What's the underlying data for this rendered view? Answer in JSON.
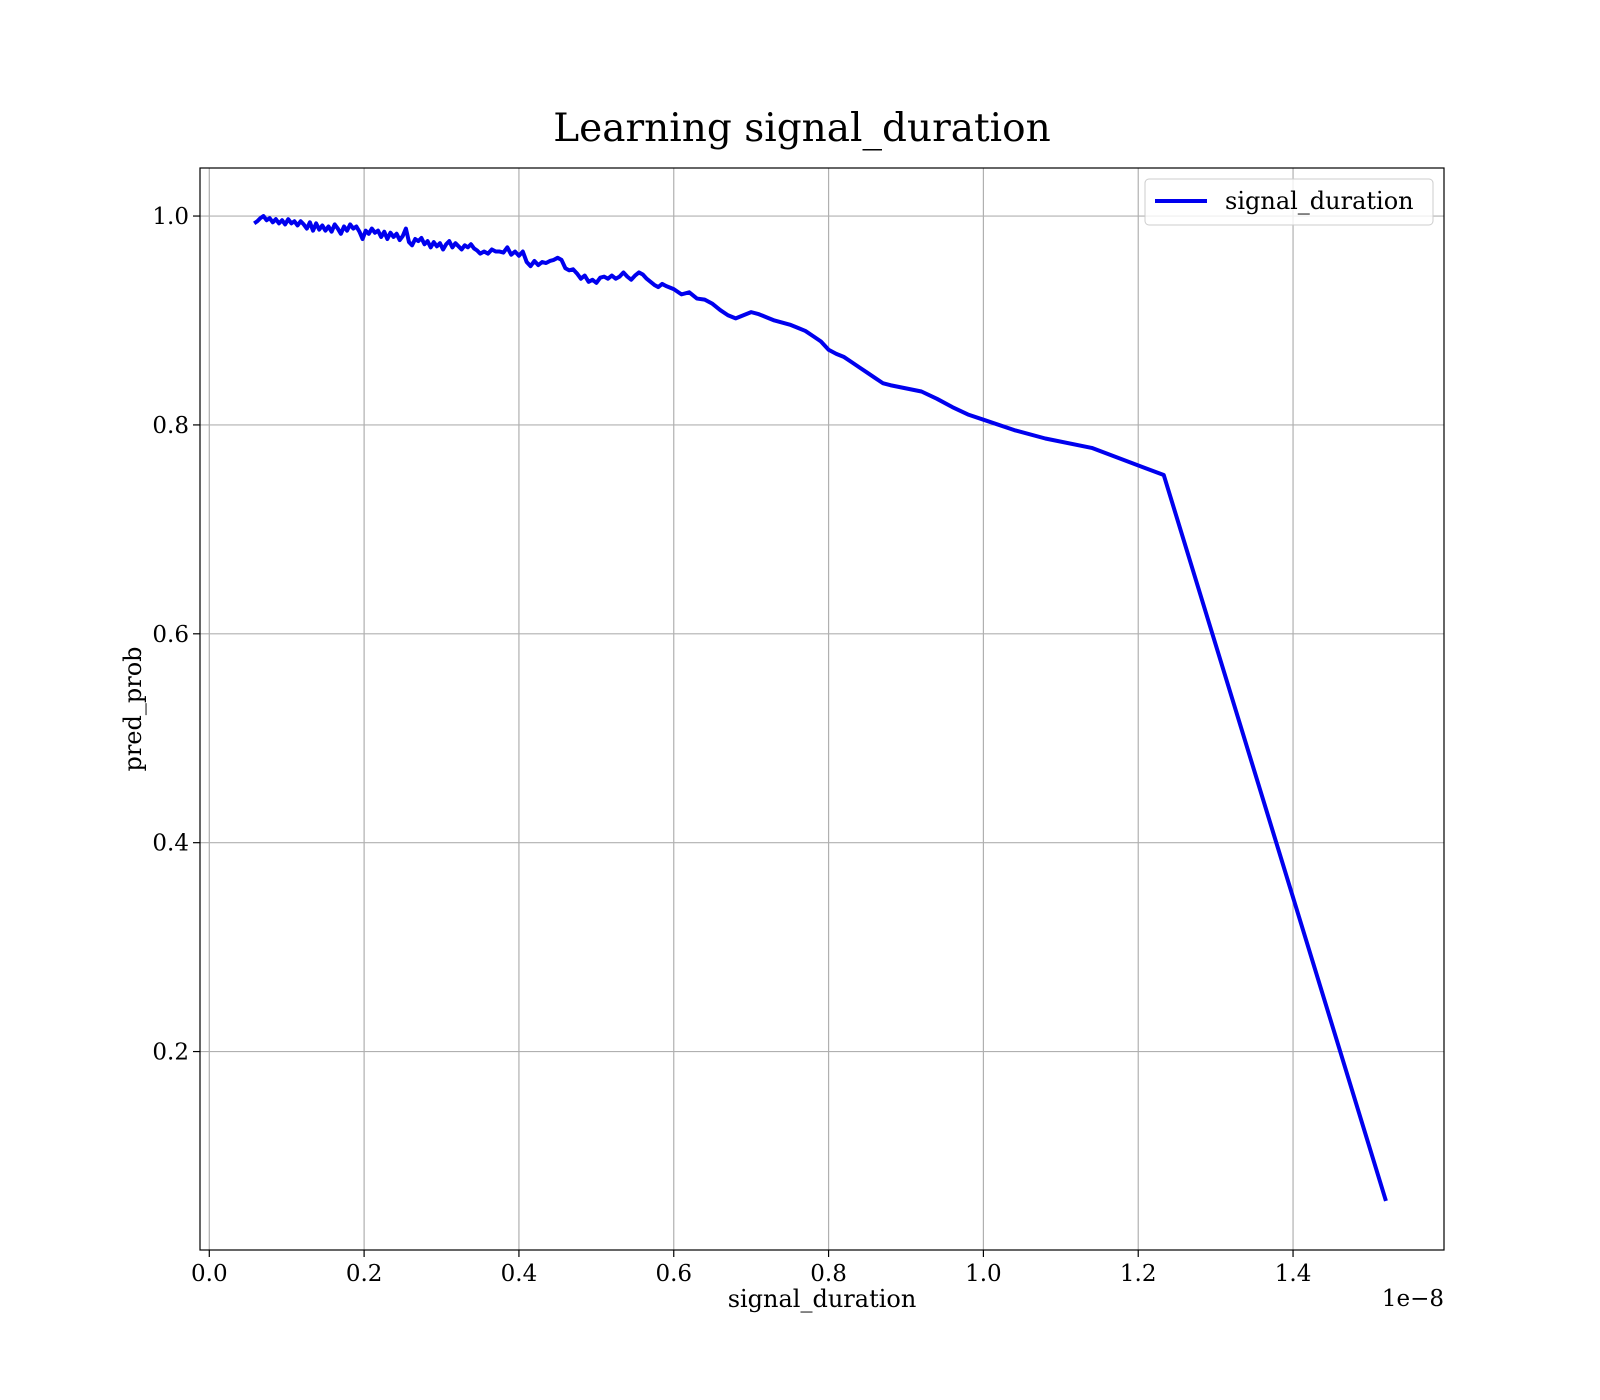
{
  "chart_data": {
    "type": "line",
    "title": "Learning signal_duration",
    "xlabel": "signal_duration",
    "ylabel": "pred_prob",
    "x_offset_text": "1e−8",
    "xlim": [
      -0.012,
      1.595
    ],
    "ylim": [
      0.01,
      1.046
    ],
    "x_ticks": [
      0.0,
      0.2,
      0.4,
      0.6,
      0.8,
      1.0,
      1.2,
      1.4
    ],
    "x_tick_labels": [
      "0.0",
      "0.2",
      "0.4",
      "0.6",
      "0.8",
      "1.0",
      "1.2",
      "1.4"
    ],
    "y_ticks": [
      0.2,
      0.4,
      0.6,
      0.8,
      1.0
    ],
    "y_tick_labels": [
      "0.2",
      "0.4",
      "0.6",
      "0.8",
      "1.0"
    ],
    "grid": true,
    "legend_position": "upper right",
    "colors": {
      "series": "#0000ee"
    },
    "series": [
      {
        "name": "signal_duration",
        "x": [
          0.058,
          0.062,
          0.066,
          0.07,
          0.074,
          0.078,
          0.082,
          0.086,
          0.09,
          0.094,
          0.098,
          0.102,
          0.106,
          0.11,
          0.114,
          0.118,
          0.122,
          0.126,
          0.13,
          0.134,
          0.138,
          0.142,
          0.146,
          0.15,
          0.154,
          0.158,
          0.162,
          0.166,
          0.17,
          0.174,
          0.178,
          0.182,
          0.186,
          0.19,
          0.194,
          0.198,
          0.202,
          0.206,
          0.21,
          0.214,
          0.218,
          0.222,
          0.226,
          0.23,
          0.234,
          0.238,
          0.242,
          0.246,
          0.25,
          0.254,
          0.258,
          0.262,
          0.266,
          0.27,
          0.274,
          0.278,
          0.282,
          0.286,
          0.29,
          0.294,
          0.298,
          0.302,
          0.306,
          0.31,
          0.314,
          0.318,
          0.322,
          0.326,
          0.33,
          0.334,
          0.338,
          0.342,
          0.346,
          0.35,
          0.355,
          0.36,
          0.365,
          0.37,
          0.375,
          0.38,
          0.385,
          0.39,
          0.395,
          0.4,
          0.405,
          0.41,
          0.415,
          0.42,
          0.425,
          0.43,
          0.435,
          0.44,
          0.445,
          0.45,
          0.455,
          0.46,
          0.465,
          0.47,
          0.475,
          0.48,
          0.485,
          0.49,
          0.495,
          0.5,
          0.505,
          0.51,
          0.515,
          0.52,
          0.525,
          0.53,
          0.535,
          0.54,
          0.545,
          0.55,
          0.555,
          0.56,
          0.565,
          0.57,
          0.575,
          0.58,
          0.585,
          0.59,
          0.6,
          0.61,
          0.62,
          0.63,
          0.64,
          0.65,
          0.66,
          0.67,
          0.68,
          0.69,
          0.7,
          0.71,
          0.72,
          0.73,
          0.74,
          0.75,
          0.76,
          0.77,
          0.78,
          0.79,
          0.8,
          0.81,
          0.82,
          0.83,
          0.84,
          0.85,
          0.86,
          0.87,
          0.88,
          0.9,
          0.92,
          0.94,
          0.96,
          0.98,
          1.0,
          1.04,
          1.08,
          1.14,
          1.233,
          1.52
        ],
        "y": [
          0.993,
          0.995,
          0.998,
          1.0,
          0.996,
          0.998,
          0.994,
          0.997,
          0.993,
          0.996,
          0.992,
          0.997,
          0.993,
          0.995,
          0.991,
          0.995,
          0.992,
          0.988,
          0.994,
          0.986,
          0.993,
          0.987,
          0.991,
          0.986,
          0.99,
          0.985,
          0.992,
          0.988,
          0.983,
          0.99,
          0.986,
          0.992,
          0.988,
          0.99,
          0.985,
          0.978,
          0.986,
          0.983,
          0.988,
          0.984,
          0.986,
          0.98,
          0.985,
          0.978,
          0.984,
          0.98,
          0.983,
          0.977,
          0.981,
          0.988,
          0.975,
          0.972,
          0.978,
          0.976,
          0.979,
          0.973,
          0.976,
          0.97,
          0.975,
          0.971,
          0.974,
          0.968,
          0.973,
          0.976,
          0.97,
          0.974,
          0.971,
          0.968,
          0.972,
          0.97,
          0.973,
          0.969,
          0.967,
          0.964,
          0.966,
          0.964,
          0.968,
          0.966,
          0.966,
          0.965,
          0.97,
          0.963,
          0.966,
          0.962,
          0.966,
          0.956,
          0.952,
          0.957,
          0.953,
          0.956,
          0.955,
          0.957,
          0.958,
          0.96,
          0.958,
          0.95,
          0.948,
          0.949,
          0.945,
          0.94,
          0.943,
          0.937,
          0.939,
          0.936,
          0.941,
          0.942,
          0.94,
          0.943,
          0.94,
          0.942,
          0.946,
          0.942,
          0.939,
          0.943,
          0.946,
          0.944,
          0.94,
          0.937,
          0.934,
          0.932,
          0.935,
          0.933,
          0.93,
          0.925,
          0.927,
          0.921,
          0.92,
          0.916,
          0.91,
          0.905,
          0.902,
          0.905,
          0.908,
          0.906,
          0.903,
          0.9,
          0.898,
          0.896,
          0.893,
          0.89,
          0.885,
          0.88,
          0.872,
          0.868,
          0.865,
          0.86,
          0.855,
          0.85,
          0.845,
          0.84,
          0.838,
          0.835,
          0.832,
          0.825,
          0.817,
          0.81,
          0.805,
          0.795,
          0.787,
          0.778,
          0.752,
          0.057
        ]
      }
    ]
  }
}
